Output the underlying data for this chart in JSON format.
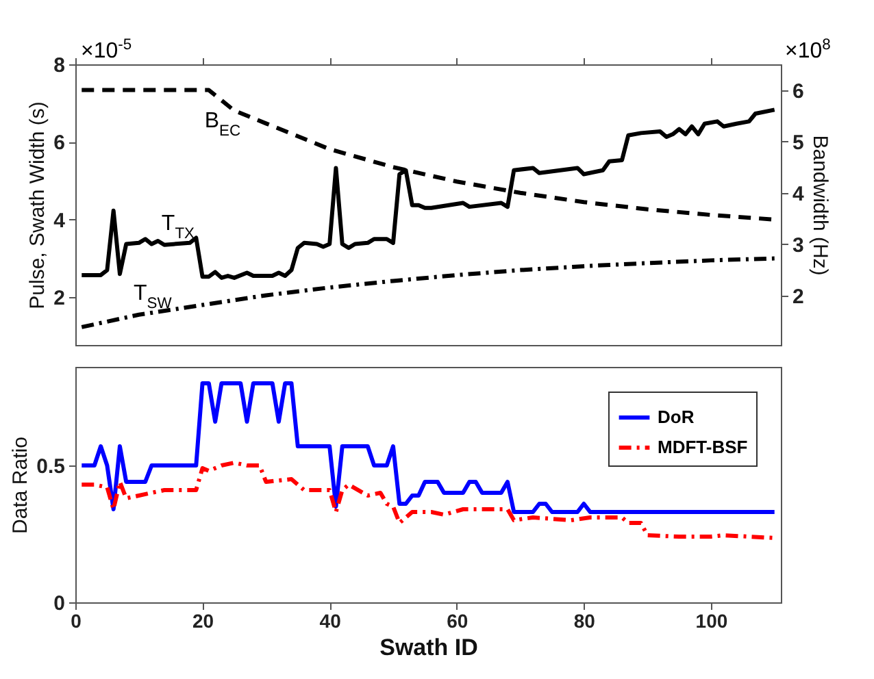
{
  "chart_data": [
    {
      "type": "line",
      "ylabel": "Pulse, Swath Width (s)",
      "y2label": "Bandwidth (Hz)",
      "xlim": [
        0,
        111
      ],
      "xticks": [
        0,
        20,
        40,
        60,
        80,
        100
      ],
      "ylim": [
        0.77,
        8
      ],
      "yticks": [
        2,
        4,
        6,
        8
      ],
      "y2lim": [
        1.04,
        6.5
      ],
      "y2ticks": [
        2,
        3,
        4,
        5,
        6
      ],
      "tick_labels": "y",
      "grid": false,
      "legend": false,
      "annotations": [
        "×10$^{-5}$",
        "×10$^{8}$"
      ],
      "series": [
        {
          "name": "B$_{EC}$",
          "color": "#000000",
          "axis": "y2",
          "line_style": "dashed",
          "x": [
            1,
            21,
            25,
            30,
            40,
            50,
            60,
            70,
            80,
            90,
            100,
            110
          ],
          "values": [
            6.0,
            6.0,
            5.6,
            5.35,
            4.85,
            4.5,
            4.22,
            4.0,
            3.82,
            3.68,
            3.57,
            3.48
          ]
        },
        {
          "name": "T$_{TX}$",
          "color": "#000000",
          "line_style": "solid",
          "x": [
            1,
            4,
            5,
            6,
            7,
            8,
            10,
            11,
            12,
            13,
            14,
            18,
            19,
            20,
            21,
            22,
            23,
            24,
            25,
            27,
            28,
            31,
            32,
            33,
            34,
            35,
            36,
            38,
            39,
            40,
            41,
            42,
            43,
            44,
            46,
            47,
            49,
            50,
            51,
            52,
            53,
            54,
            55,
            56,
            61,
            62,
            67,
            68,
            69,
            72,
            73,
            79,
            80,
            83,
            84,
            86,
            87,
            89,
            92,
            93,
            94,
            95,
            96,
            97,
            98,
            99,
            101,
            102,
            104,
            106,
            107,
            110
          ],
          "values": [
            2.57,
            2.57,
            2.7,
            4.23,
            2.6,
            3.37,
            3.4,
            3.5,
            3.37,
            3.45,
            3.35,
            3.4,
            3.53,
            2.53,
            2.53,
            2.65,
            2.5,
            2.55,
            2.5,
            2.63,
            2.55,
            2.55,
            2.63,
            2.55,
            2.7,
            3.27,
            3.4,
            3.37,
            3.3,
            3.37,
            5.33,
            3.37,
            3.27,
            3.37,
            3.4,
            3.5,
            3.5,
            3.4,
            5.17,
            5.27,
            4.37,
            4.37,
            4.3,
            4.3,
            4.43,
            4.33,
            4.43,
            4.33,
            5.27,
            5.33,
            5.2,
            5.33,
            5.17,
            5.27,
            5.5,
            5.53,
            6.17,
            6.23,
            6.27,
            6.13,
            6.2,
            6.33,
            6.2,
            6.4,
            6.2,
            6.47,
            6.53,
            6.4,
            6.47,
            6.53,
            6.73,
            6.83
          ]
        },
        {
          "name": "T$_{SW}$",
          "color": "#000000",
          "line_style": "dashdot",
          "x": [
            1,
            10,
            20,
            30,
            40,
            50,
            60,
            70,
            80,
            90,
            100,
            110
          ],
          "values": [
            1.23,
            1.55,
            1.8,
            2.05,
            2.25,
            2.42,
            2.57,
            2.7,
            2.8,
            2.88,
            2.95,
            3.0
          ]
        }
      ]
    },
    {
      "type": "line",
      "xlabel": "Swath ID",
      "ylabel": "Data Ratio",
      "xlim": [
        0,
        111
      ],
      "xticks": [
        0,
        20,
        40,
        60,
        80,
        100
      ],
      "ylim": [
        0,
        0.86
      ],
      "yticks": [
        0,
        0.5
      ],
      "grid": false,
      "legend": "top right",
      "series": [
        {
          "name": "DoR",
          "color": "#0000ff",
          "line_style": "solid",
          "x": [
            1,
            3,
            4,
            5,
            6,
            7,
            8,
            11,
            12,
            19,
            20,
            21,
            22,
            23,
            26,
            27,
            28,
            31,
            32,
            33,
            34,
            35,
            40,
            41,
            42,
            46,
            47,
            49,
            50,
            51,
            52,
            53,
            54,
            55,
            57,
            58,
            61,
            62,
            63,
            64,
            67,
            68,
            69,
            72,
            73,
            74,
            75,
            79,
            80,
            81,
            110
          ],
          "values": [
            0.5,
            0.5,
            0.57,
            0.5,
            0.34,
            0.57,
            0.44,
            0.44,
            0.5,
            0.5,
            0.8,
            0.8,
            0.66,
            0.8,
            0.8,
            0.66,
            0.8,
            0.8,
            0.66,
            0.8,
            0.8,
            0.57,
            0.57,
            0.35,
            0.57,
            0.57,
            0.5,
            0.5,
            0.57,
            0.36,
            0.36,
            0.39,
            0.39,
            0.44,
            0.44,
            0.4,
            0.4,
            0.44,
            0.44,
            0.4,
            0.4,
            0.44,
            0.33,
            0.33,
            0.36,
            0.36,
            0.33,
            0.33,
            0.36,
            0.33,
            0.33
          ]
        },
        {
          "name": "MDFT-BSF",
          "color": "#ff0000",
          "line_style": "dashdot",
          "x": [
            1,
            3,
            5,
            6,
            7,
            8,
            10,
            12,
            14,
            19,
            20,
            21,
            23,
            25,
            27,
            29,
            30,
            34,
            36,
            40,
            41,
            42,
            43,
            46,
            48,
            49,
            50,
            51,
            53,
            56,
            58,
            61,
            68,
            69,
            72,
            78,
            81,
            86,
            87,
            89,
            90,
            95,
            100,
            102,
            110
          ],
          "values": [
            0.43,
            0.43,
            0.42,
            0.34,
            0.44,
            0.38,
            0.39,
            0.4,
            0.41,
            0.41,
            0.49,
            0.48,
            0.5,
            0.51,
            0.5,
            0.5,
            0.44,
            0.45,
            0.41,
            0.41,
            0.33,
            0.41,
            0.43,
            0.39,
            0.4,
            0.36,
            0.35,
            0.29,
            0.33,
            0.33,
            0.32,
            0.34,
            0.34,
            0.3,
            0.31,
            0.3,
            0.31,
            0.31,
            0.29,
            0.29,
            0.245,
            0.24,
            0.24,
            0.245,
            0.235
          ]
        }
      ]
    }
  ]
}
